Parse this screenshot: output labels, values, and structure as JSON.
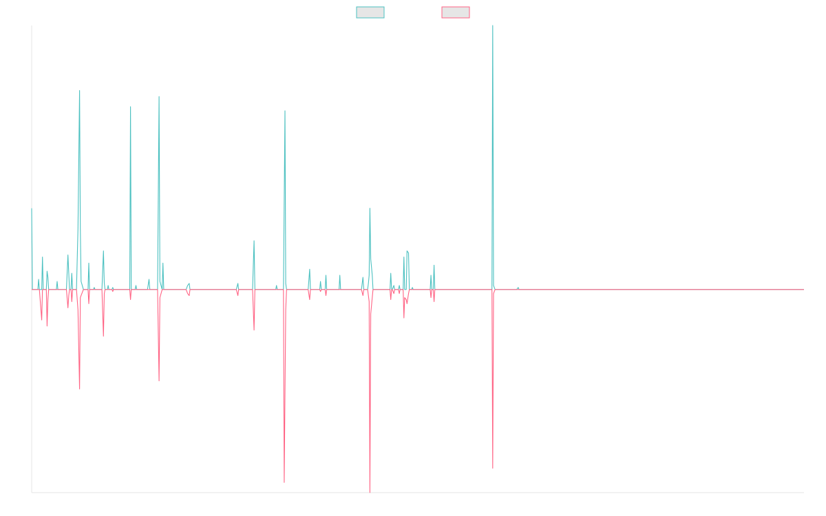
{
  "chart_data": {
    "type": "line",
    "legend": {
      "position": "top-center",
      "entries": [
        {
          "label": "",
          "fill": "#e6e6e6",
          "border": "#4bc0c0"
        },
        {
          "label": "",
          "fill": "#e6e6e6",
          "border": "#ff6384"
        }
      ]
    },
    "grid": false,
    "ylim": [
      -100,
      130
    ],
    "xlim": [
      0,
      1000
    ],
    "series": [
      {
        "color": "#4bc0c0",
        "points": [
          [
            0,
            40
          ],
          [
            1,
            0
          ],
          [
            8,
            0
          ],
          [
            9,
            5
          ],
          [
            10,
            0
          ],
          [
            13,
            0
          ],
          [
            14,
            16
          ],
          [
            15,
            0
          ],
          [
            19,
            0
          ],
          [
            20,
            9
          ],
          [
            21,
            6
          ],
          [
            22,
            0
          ],
          [
            32,
            0
          ],
          [
            33,
            4
          ],
          [
            34,
            0
          ],
          [
            40,
            0
          ],
          [
            41,
            0
          ],
          [
            45,
            0
          ],
          [
            47,
            17
          ],
          [
            48,
            8
          ],
          [
            49,
            0
          ],
          [
            51,
            0
          ],
          [
            52,
            8
          ],
          [
            53,
            0
          ],
          [
            58,
            0
          ],
          [
            60,
            30
          ],
          [
            62,
            98
          ],
          [
            63,
            30
          ],
          [
            64,
            4
          ],
          [
            67,
            0
          ],
          [
            73,
            0
          ],
          [
            74,
            13
          ],
          [
            75,
            0
          ],
          [
            80,
            0
          ],
          [
            81,
            1
          ],
          [
            82,
            0
          ],
          [
            91,
            0
          ],
          [
            93,
            19
          ],
          [
            94,
            3
          ],
          [
            95,
            0
          ],
          [
            98,
            0
          ],
          [
            99,
            2
          ],
          [
            100,
            0
          ],
          [
            104,
            0
          ],
          [
            105,
            1
          ],
          [
            106,
            0
          ],
          [
            127,
            0
          ],
          [
            128,
            90
          ],
          [
            129,
            0
          ],
          [
            134,
            0
          ],
          [
            135,
            2
          ],
          [
            136,
            0
          ],
          [
            143,
            0
          ],
          [
            144,
            0
          ],
          [
            145,
            0
          ],
          [
            150,
            0
          ],
          [
            152,
            5
          ],
          [
            153,
            0
          ],
          [
            163,
            0
          ],
          [
            165,
            95
          ],
          [
            166,
            4
          ],
          [
            169,
            0
          ],
          [
            170,
            13
          ],
          [
            171,
            0
          ],
          [
            190,
            0
          ],
          [
            191,
            0
          ],
          [
            192,
            0
          ],
          [
            200,
            0
          ],
          [
            202,
            2
          ],
          [
            204,
            3
          ],
          [
            205,
            0
          ],
          [
            241,
            0
          ],
          [
            242,
            0
          ],
          [
            243,
            0
          ],
          [
            249,
            0
          ],
          [
            250,
            0
          ],
          [
            251,
            0
          ],
          [
            265,
            0
          ],
          [
            267,
            3
          ],
          [
            268,
            0
          ],
          [
            286,
            0
          ],
          [
            288,
            24
          ],
          [
            289,
            0
          ],
          [
            293,
            0
          ],
          [
            316,
            0
          ],
          [
            317,
            2
          ],
          [
            318,
            0
          ],
          [
            326,
            0
          ],
          [
            328,
            88
          ],
          [
            329,
            3
          ],
          [
            330,
            0
          ],
          [
            358,
            0
          ],
          [
            360,
            10
          ],
          [
            361,
            0
          ],
          [
            373,
            0
          ],
          [
            374,
            4
          ],
          [
            375,
            0
          ],
          [
            380,
            0
          ],
          [
            381,
            7
          ],
          [
            382,
            0
          ],
          [
            388,
            0
          ],
          [
            389,
            0
          ],
          [
            390,
            0
          ],
          [
            398,
            0
          ],
          [
            399,
            7
          ],
          [
            400,
            0
          ],
          [
            427,
            0
          ],
          [
            429,
            6
          ],
          [
            430,
            0
          ],
          [
            435,
            0
          ],
          [
            436,
            3
          ],
          [
            437,
            7
          ],
          [
            438,
            40
          ],
          [
            439,
            15
          ],
          [
            441,
            7
          ],
          [
            442,
            0
          ],
          [
            464,
            0
          ],
          [
            465,
            8
          ],
          [
            466,
            0
          ],
          [
            467,
            0
          ],
          [
            469,
            2
          ],
          [
            470,
            0
          ],
          [
            475,
            0
          ],
          [
            476,
            2
          ],
          [
            477,
            0
          ],
          [
            481,
            0
          ],
          [
            482,
            16
          ],
          [
            483,
            0
          ],
          [
            485,
            0
          ],
          [
            486,
            19
          ],
          [
            488,
            18
          ],
          [
            489,
            0
          ],
          [
            492,
            0
          ],
          [
            493,
            1
          ],
          [
            494,
            0
          ],
          [
            516,
            0
          ],
          [
            517,
            7
          ],
          [
            518,
            0
          ],
          [
            520,
            0
          ],
          [
            521,
            12
          ],
          [
            522,
            0
          ],
          [
            546,
            0
          ],
          [
            596,
            0
          ],
          [
            597,
            130
          ],
          [
            598,
            2
          ],
          [
            600,
            0
          ],
          [
            605,
            0
          ],
          [
            607,
            0
          ],
          [
            609,
            0
          ],
          [
            628,
            0
          ],
          [
            630,
            1
          ],
          [
            631,
            0
          ],
          [
            777,
            0
          ],
          [
            779,
            0
          ],
          [
            781,
            0
          ],
          [
            1000,
            0
          ]
        ]
      },
      {
        "color": "#ff6384",
        "points": [
          [
            0,
            0
          ],
          [
            10,
            0
          ],
          [
            13,
            -15
          ],
          [
            14,
            0
          ],
          [
            19,
            0
          ],
          [
            20,
            -18
          ],
          [
            21,
            -5
          ],
          [
            22,
            0
          ],
          [
            32,
            0
          ],
          [
            33,
            0
          ],
          [
            34,
            0
          ],
          [
            40,
            0
          ],
          [
            41,
            0
          ],
          [
            45,
            0
          ],
          [
            47,
            -9
          ],
          [
            48,
            -3
          ],
          [
            49,
            0
          ],
          [
            51,
            0
          ],
          [
            52,
            -6
          ],
          [
            53,
            0
          ],
          [
            58,
            0
          ],
          [
            60,
            -10
          ],
          [
            62,
            -49
          ],
          [
            63,
            -4
          ],
          [
            64,
            -3
          ],
          [
            67,
            0
          ],
          [
            73,
            0
          ],
          [
            74,
            -7
          ],
          [
            75,
            0
          ],
          [
            80,
            0
          ],
          [
            82,
            0
          ],
          [
            91,
            0
          ],
          [
            93,
            -23
          ],
          [
            94,
            -2
          ],
          [
            95,
            0
          ],
          [
            104,
            0
          ],
          [
            105,
            -1
          ],
          [
            106,
            0
          ],
          [
            127,
            0
          ],
          [
            128,
            -5
          ],
          [
            129,
            0
          ],
          [
            134,
            0
          ],
          [
            136,
            0
          ],
          [
            143,
            0
          ],
          [
            145,
            0
          ],
          [
            150,
            0
          ],
          [
            152,
            0
          ],
          [
            153,
            0
          ],
          [
            163,
            0
          ],
          [
            165,
            -45
          ],
          [
            166,
            -4
          ],
          [
            169,
            0
          ],
          [
            171,
            0
          ],
          [
            190,
            0
          ],
          [
            191,
            0
          ],
          [
            192,
            0
          ],
          [
            200,
            0
          ],
          [
            202,
            -2
          ],
          [
            204,
            -3
          ],
          [
            205,
            0
          ],
          [
            241,
            0
          ],
          [
            242,
            0
          ],
          [
            243,
            0
          ],
          [
            265,
            0
          ],
          [
            267,
            -3
          ],
          [
            268,
            0
          ],
          [
            286,
            0
          ],
          [
            288,
            -20
          ],
          [
            289,
            0
          ],
          [
            293,
            0
          ],
          [
            316,
            0
          ],
          [
            318,
            0
          ],
          [
            326,
            0
          ],
          [
            327,
            -95
          ],
          [
            329,
            -10
          ],
          [
            330,
            0
          ],
          [
            358,
            0
          ],
          [
            360,
            -5
          ],
          [
            361,
            0
          ],
          [
            373,
            0
          ],
          [
            374,
            -1
          ],
          [
            375,
            0
          ],
          [
            380,
            0
          ],
          [
            381,
            -3
          ],
          [
            382,
            0
          ],
          [
            388,
            0
          ],
          [
            389,
            0
          ],
          [
            390,
            0
          ],
          [
            427,
            0
          ],
          [
            429,
            -3
          ],
          [
            430,
            0
          ],
          [
            435,
            0
          ],
          [
            436,
            -3
          ],
          [
            437,
            -6
          ],
          [
            438,
            -100
          ],
          [
            439,
            -12
          ],
          [
            441,
            -4
          ],
          [
            442,
            0
          ],
          [
            464,
            0
          ],
          [
            465,
            -5
          ],
          [
            466,
            0
          ],
          [
            467,
            0
          ],
          [
            469,
            -2
          ],
          [
            470,
            0
          ],
          [
            475,
            0
          ],
          [
            476,
            -2
          ],
          [
            477,
            0
          ],
          [
            481,
            0
          ],
          [
            482,
            -14
          ],
          [
            483,
            -4
          ],
          [
            485,
            -5
          ],
          [
            486,
            -7
          ],
          [
            488,
            -2
          ],
          [
            489,
            0
          ],
          [
            516,
            0
          ],
          [
            517,
            -4
          ],
          [
            518,
            0
          ],
          [
            520,
            0
          ],
          [
            521,
            -6
          ],
          [
            522,
            0
          ],
          [
            546,
            0
          ],
          [
            596,
            0
          ],
          [
            597,
            -88
          ],
          [
            598,
            -2
          ],
          [
            600,
            0
          ],
          [
            605,
            0
          ],
          [
            607,
            0
          ],
          [
            609,
            0
          ],
          [
            777,
            0
          ],
          [
            779,
            0
          ],
          [
            781,
            0
          ],
          [
            1000,
            0
          ]
        ]
      }
    ]
  }
}
